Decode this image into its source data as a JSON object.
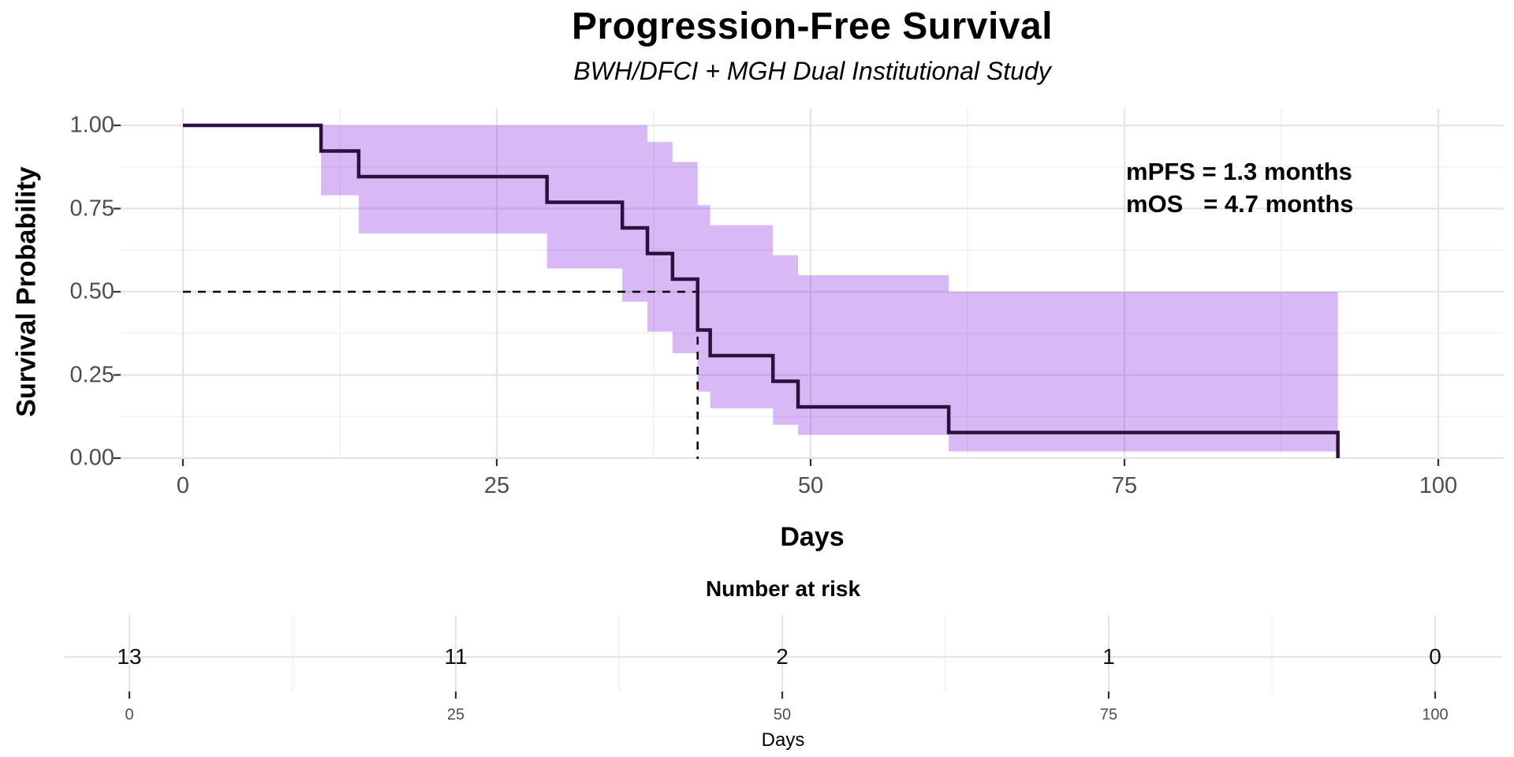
{
  "title": "Progression-Free Survival",
  "subtitle": "BWH/DFCI + MGH Dual Institutional Study",
  "annotation": {
    "line1": "mPFS = 1.3 months",
    "line2": "mOS   = 4.7 months"
  },
  "axes": {
    "y": {
      "title": "Survival Probability",
      "tick_labels": [
        "1.00",
        "0.75",
        "0.50",
        "0.25",
        "0.00"
      ]
    },
    "x": {
      "title": "Days",
      "tick_labels": [
        "0",
        "25",
        "50",
        "75",
        "100"
      ]
    }
  },
  "risk_table": {
    "title": "Number at risk",
    "values": [
      "13",
      "11",
      "2",
      "1",
      "0"
    ],
    "tick_labels": [
      "0",
      "25",
      "50",
      "75",
      "100"
    ],
    "axis_title": "Days"
  },
  "chart_data": {
    "type": "line",
    "subtype": "kaplan_meier_step",
    "title": "Progression-Free Survival",
    "subtitle": "BWH/DFCI + MGH Dual Institutional Study",
    "xlabel": "Days",
    "ylabel": "Survival Probability",
    "xlim": [
      0,
      100
    ],
    "ylim": [
      0,
      1
    ],
    "x_ticks": [
      0,
      25,
      50,
      75,
      100
    ],
    "x_minor_ticks": [
      12.5,
      37.5,
      62.5,
      87.5
    ],
    "y_ticks": [
      0,
      0.25,
      0.5,
      0.75,
      1.0
    ],
    "y_minor_ticks": [
      0.125,
      0.375,
      0.625,
      0.875
    ],
    "grid": "on",
    "legend": "none",
    "mPFS_months": 1.3,
    "mOS_months": 4.7,
    "median_day": 41,
    "median_survival": 0.5,
    "survival_steps": [
      {
        "day": 0,
        "s": 1.0
      },
      {
        "day": 11,
        "s": 0.923
      },
      {
        "day": 14,
        "s": 0.846
      },
      {
        "day": 29,
        "s": 0.769
      },
      {
        "day": 35,
        "s": 0.692
      },
      {
        "day": 37,
        "s": 0.615
      },
      {
        "day": 39,
        "s": 0.538
      },
      {
        "day": 41,
        "s": 0.385
      },
      {
        "day": 42,
        "s": 0.308
      },
      {
        "day": 47,
        "s": 0.231
      },
      {
        "day": 49,
        "s": 0.154
      },
      {
        "day": 61,
        "s": 0.077
      },
      {
        "day": 92,
        "s": 0.0
      }
    ],
    "ci_band": [
      {
        "day": 11,
        "low": 0.79,
        "high": 1.0
      },
      {
        "day": 14,
        "low": 0.675,
        "high": 1.0
      },
      {
        "day": 29,
        "low": 0.57,
        "high": 1.0
      },
      {
        "day": 35,
        "low": 0.47,
        "high": 1.0
      },
      {
        "day": 37,
        "low": 0.38,
        "high": 0.95
      },
      {
        "day": 39,
        "low": 0.315,
        "high": 0.89
      },
      {
        "day": 41,
        "low": 0.2,
        "high": 0.76
      },
      {
        "day": 42,
        "low": 0.15,
        "high": 0.7
      },
      {
        "day": 47,
        "low": 0.1,
        "high": 0.61
      },
      {
        "day": 49,
        "low": 0.07,
        "high": 0.55
      },
      {
        "day": 61,
        "low": 0.02,
        "high": 0.5
      }
    ],
    "ci_end_day": 92,
    "number_at_risk": {
      "days": [
        0,
        25,
        50,
        75,
        100
      ],
      "values": [
        13,
        11,
        2,
        1,
        0
      ]
    },
    "colors": {
      "curve": "#2D103E",
      "ribbon": "#8A2BE2",
      "ribbon_opacity": 0.33,
      "dashed": "#000000",
      "grid_major": "#E4E4E4",
      "grid_minor": "#F1F1F1",
      "tick_mark": "#333333",
      "tick_text": "#4D4D4D"
    }
  }
}
